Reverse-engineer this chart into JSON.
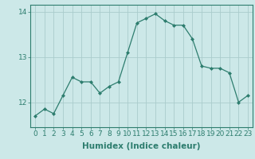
{
  "x": [
    0,
    1,
    2,
    3,
    4,
    5,
    6,
    7,
    8,
    9,
    10,
    11,
    12,
    13,
    14,
    15,
    16,
    17,
    18,
    19,
    20,
    21,
    22,
    23
  ],
  "y": [
    11.7,
    11.85,
    11.75,
    12.15,
    12.55,
    12.45,
    12.45,
    12.2,
    12.35,
    12.45,
    13.1,
    13.75,
    13.85,
    13.95,
    13.8,
    13.7,
    13.7,
    13.4,
    12.8,
    12.75,
    12.75,
    12.65,
    12.0,
    12.15
  ],
  "line_color": "#2d7d6e",
  "marker": "D",
  "marker_size": 2.0,
  "bg_color": "#cce8e8",
  "grid_color": "#aacccc",
  "xlabel": "Humidex (Indice chaleur)",
  "ylim": [
    11.45,
    14.15
  ],
  "yticks": [
    12,
    13,
    14
  ],
  "xticks": [
    0,
    1,
    2,
    3,
    4,
    5,
    6,
    7,
    8,
    9,
    10,
    11,
    12,
    13,
    14,
    15,
    16,
    17,
    18,
    19,
    20,
    21,
    22,
    23
  ],
  "tick_fontsize": 6.5,
  "xlabel_fontsize": 7.5,
  "linewidth": 0.9
}
